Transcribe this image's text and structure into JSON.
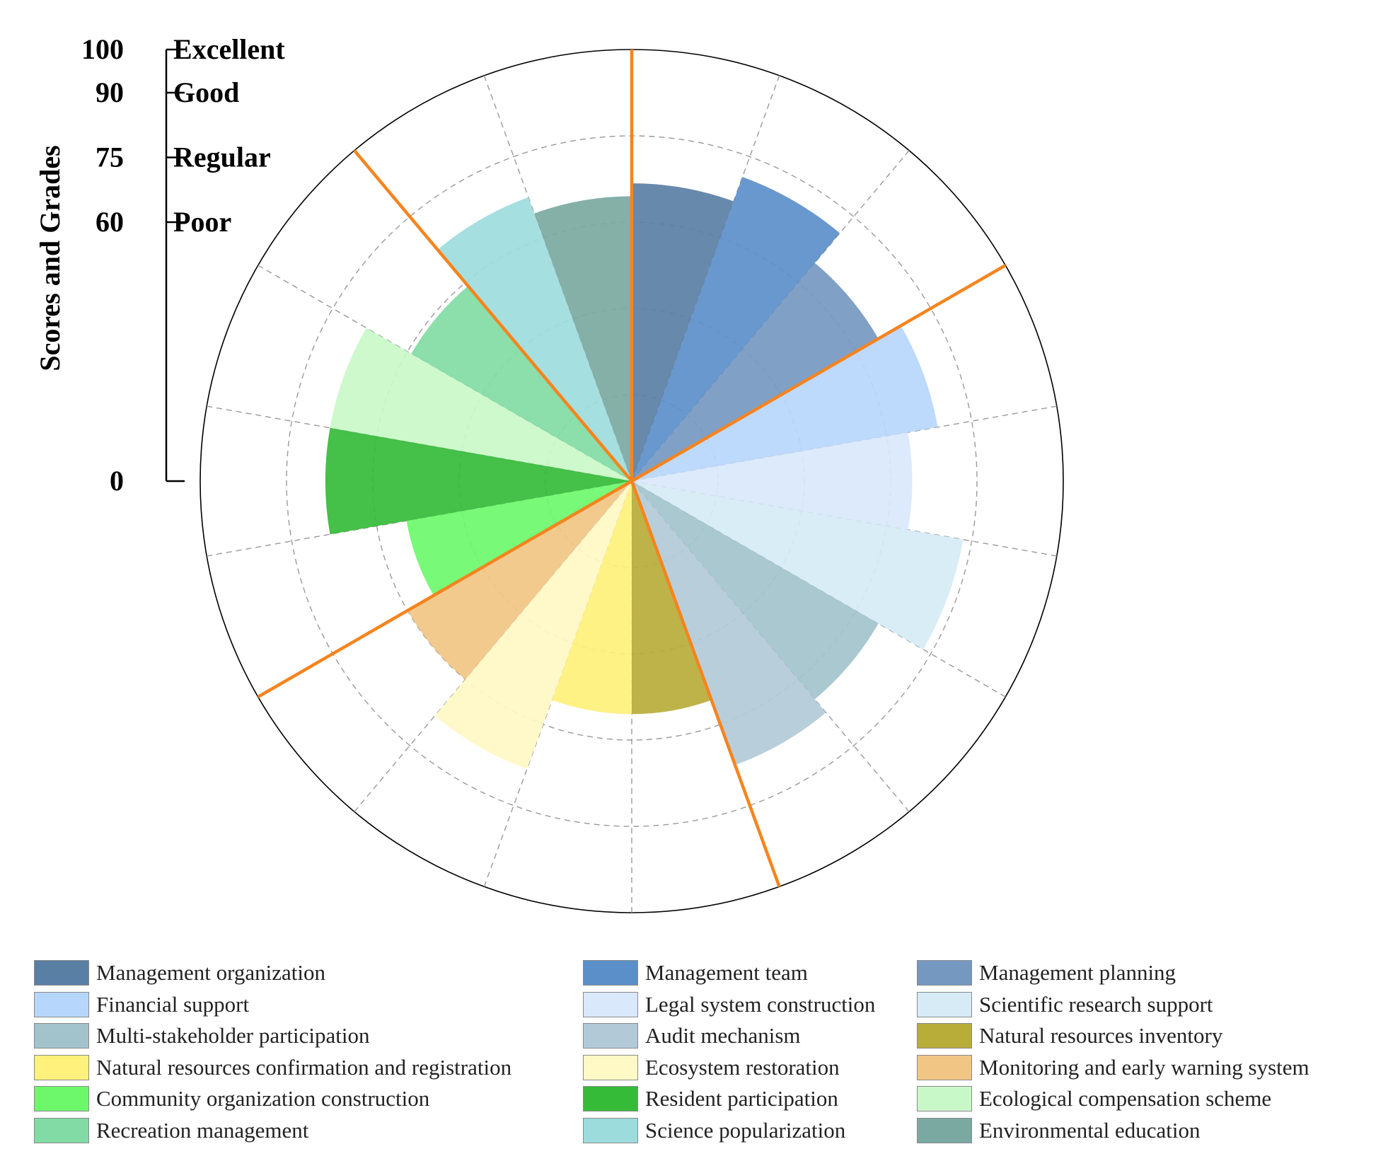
{
  "chart_data": {
    "type": "polar-bar",
    "title": "",
    "axis_title": "Scores and Grades",
    "radial_range": [
      0,
      100
    ],
    "radial_ticks": [
      0,
      60,
      75,
      90,
      100
    ],
    "grades": [
      {
        "score": 100,
        "label": "Excellent"
      },
      {
        "score": 90,
        "label": "Good"
      },
      {
        "score": 75,
        "label": "Regular"
      },
      {
        "score": 60,
        "label": "Poor"
      }
    ],
    "gridlines": "dashed",
    "legend_position": "bottom",
    "categories": [
      {
        "name": "Management organization",
        "value": 69,
        "color": "#5a7fa5"
      },
      {
        "name": "Management team",
        "value": 75,
        "color": "#5b8fc9"
      },
      {
        "name": "Management planning",
        "value": 66,
        "color": "#7598c1"
      },
      {
        "name": "Financial support",
        "value": 72,
        "color": "#b7d6fb"
      },
      {
        "name": "Legal system construction",
        "value": 65,
        "color": "#d9e8fb"
      },
      {
        "name": "Scientific research support",
        "value": 78,
        "color": "#d6ebf6"
      },
      {
        "name": "Multi-stakeholder participation",
        "value": 66,
        "color": "#a3c3cc"
      },
      {
        "name": "Audit mechanism",
        "value": 70,
        "color": "#b2cad8"
      },
      {
        "name": "Natural resources inventory",
        "value": 54,
        "color": "#b9ad3a"
      },
      {
        "name": "Natural resources confirmation and registration",
        "value": 54,
        "color": "#fff17b"
      },
      {
        "name": "Ecosystem restoration",
        "value": 71,
        "color": "#fff9c6"
      },
      {
        "name": "Monitoring and early warning system",
        "value": 60,
        "color": "#f1c684"
      },
      {
        "name": "Community organization construction",
        "value": 53,
        "color": "#6df86b"
      },
      {
        "name": "Resident participation",
        "value": 71,
        "color": "#35bb38"
      },
      {
        "name": "Ecological compensation scheme",
        "value": 71,
        "color": "#c9f8c8"
      },
      {
        "name": "Recreation management",
        "value": 59,
        "color": "#82dba4"
      },
      {
        "name": "Science popularization",
        "value": 70,
        "color": "#9ddcdc"
      },
      {
        "name": "Environmental education",
        "value": 66,
        "color": "#7aa9a1"
      }
    ],
    "group_dividers_after_index": [
      -1,
      2,
      7,
      11,
      15
    ],
    "divider_color": "#f5841e"
  }
}
